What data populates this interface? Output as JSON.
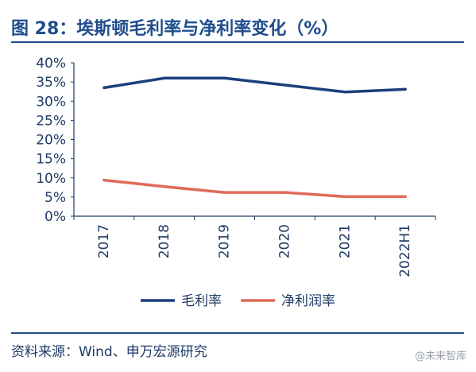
{
  "header": {
    "title": "图 28：埃斯顿毛利率与净利率变化（%）"
  },
  "footer": {
    "source": "资料来源：Wind、申万宏源研究",
    "watermark": "@未来智库"
  },
  "chart_data": {
    "type": "line",
    "title": "图 28：埃斯顿毛利率与净利率变化（%）",
    "categories": [
      "2017",
      "2018",
      "2019",
      "2020",
      "2021",
      "2022H1"
    ],
    "series": [
      {
        "name": "毛利率",
        "color": "#1b3f7a",
        "values": [
          33.5,
          36.0,
          36.0,
          34.2,
          32.4,
          33.1
        ]
      },
      {
        "name": "净利润率",
        "color": "#e06a5a",
        "values": [
          9.4,
          7.7,
          6.2,
          6.2,
          5.1,
          5.1
        ]
      }
    ],
    "y_ticks": [
      "0%",
      "5%",
      "10%",
      "15%",
      "20%",
      "25%",
      "30%",
      "35%",
      "40%"
    ],
    "ylim": [
      0,
      40
    ],
    "grid": false,
    "legend": "bottom"
  }
}
